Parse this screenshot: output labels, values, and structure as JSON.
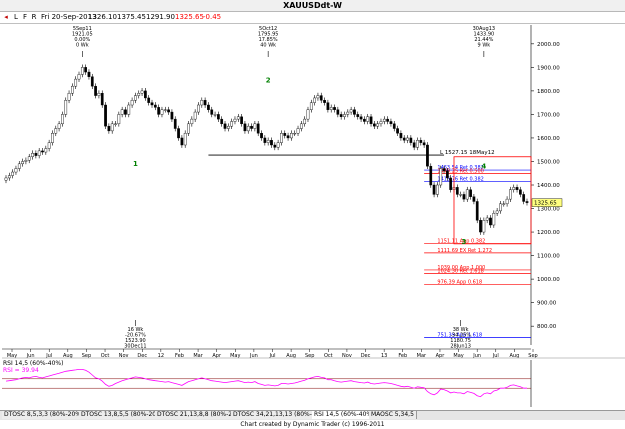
{
  "window": {
    "title": "XAUUSDdt-W"
  },
  "toolbar": {
    "buttons": [
      "L",
      "F",
      "R"
    ],
    "date": "Fri 20-Sep-2013",
    "open": "1326.10",
    "high": "1375.45",
    "low": "1291.90",
    "close": "1325.65",
    "change": "-0.45"
  },
  "colors": {
    "bull": "#ffffff",
    "bear": "#000000",
    "fib_red": "#ff0000",
    "fib_blue": "#0000ff",
    "rsi_line": "#ff00ff",
    "box": "#ff0000",
    "wave_green": "#008000",
    "rsi_level": "#800000"
  },
  "chart_data": {
    "type": "candlestick",
    "ylim": [
      720,
      2080
    ],
    "y_ticks": [
      "2000.00",
      "1900.00",
      "1800.00",
      "1700.00",
      "1600.00",
      "1500.00",
      "1400.00",
      "1300.00",
      "1200.00",
      "1100.00",
      "1000.00",
      "900.00",
      "800.00"
    ],
    "y_tick_values": [
      2000,
      1900,
      1800,
      1700,
      1600,
      1500,
      1400,
      1300,
      1200,
      1100,
      1000,
      900,
      800
    ],
    "x_ticks": [
      "May",
      "Jun",
      "Jul",
      "Aug",
      "Sep",
      "Oct",
      "Nov",
      "Dec",
      "12",
      "Feb",
      "Mar",
      "Apr",
      "May",
      "Jun",
      "Jul",
      "Aug",
      "Sep",
      "Oct",
      "Nov",
      "Dec",
      "13",
      "Feb",
      "Mar",
      "Apr",
      "May",
      "Jun",
      "Jul",
      "Aug",
      "Sep"
    ],
    "last_price_label": "1325.65",
    "closes": [
      1430,
      1440,
      1455,
      1470,
      1490,
      1500,
      1505,
      1520,
      1535,
      1525,
      1545,
      1540,
      1555,
      1580,
      1620,
      1640,
      1660,
      1700,
      1760,
      1790,
      1820,
      1850,
      1870,
      1900,
      1880,
      1860,
      1820,
      1780,
      1790,
      1740,
      1650,
      1630,
      1660,
      1660,
      1700,
      1720,
      1700,
      1740,
      1760,
      1780,
      1790,
      1800,
      1770,
      1750,
      1740,
      1730,
      1700,
      1720,
      1720,
      1710,
      1680,
      1640,
      1600,
      1570,
      1620,
      1660,
      1680,
      1710,
      1740,
      1760,
      1740,
      1720,
      1700,
      1700,
      1680,
      1660,
      1640,
      1650,
      1670,
      1680,
      1690,
      1660,
      1630,
      1650,
      1640,
      1660,
      1620,
      1600,
      1580,
      1590,
      1570,
      1560,
      1580,
      1620,
      1610,
      1600,
      1620,
      1620,
      1640,
      1660,
      1680,
      1720,
      1750,
      1770,
      1780,
      1760,
      1750,
      1720,
      1730,
      1720,
      1700,
      1690,
      1700,
      1710,
      1720,
      1700,
      1690,
      1680,
      1670,
      1690,
      1660,
      1650,
      1660,
      1670,
      1680,
      1670,
      1660,
      1640,
      1620,
      1600,
      1590,
      1600,
      1580,
      1560,
      1590,
      1580,
      1570,
      1480,
      1400,
      1360,
      1400,
      1470,
      1460,
      1430,
      1380,
      1390,
      1360,
      1360,
      1340,
      1380,
      1350,
      1330,
      1250,
      1200,
      1250,
      1260,
      1230,
      1280,
      1290,
      1320,
      1320,
      1340,
      1380,
      1390,
      1380,
      1360,
      1330,
      1325
    ],
    "annotations_top": [
      {
        "text": "5Sep11\n1921.05\n0.00%\n0 Wk",
        "x_index": 23
      },
      {
        "text": "5Oct12\n1795.95\n17.85%\n40 Wk",
        "x_index": 79
      },
      {
        "text": "30Aug13\n1433.90\n21.44%\n9 Wk",
        "x_index": 144
      }
    ],
    "annotations_bottom": [
      {
        "text": "16 Wk\n-20.67%\n1523.90\n30Dec11",
        "x_index": 39
      },
      {
        "text": "38 Wk\n-34.25%\n1180.75\n28Jun13",
        "x_index": 137
      }
    ],
    "waves": [
      {
        "label": "1",
        "x_index": 39,
        "price": 1480
      },
      {
        "label": "2",
        "x_index": 79,
        "price": 1835
      },
      {
        "label": "3",
        "x_index": 138,
        "price": 1150
      },
      {
        "label": "4",
        "x_index": 144,
        "price": 1470
      }
    ],
    "support_line": {
      "label": "L 1527.15 18May12",
      "price": 1527.15
    },
    "fib_levels": [
      {
        "label": "1463.54 Ret 0.382",
        "price": 1463.54,
        "color": "blue"
      },
      {
        "label": "1449.25 Ret 0.500",
        "price": 1449.25,
        "color": "red"
      },
      {
        "label": "1415.76 Ret 0.382",
        "price": 1415.76,
        "color": "blue"
      },
      {
        "label": "1151.11 App 0.382",
        "price": 1151.11,
        "color": "red"
      },
      {
        "label": "1111.69 EX Ret 1.272",
        "price": 1111.69,
        "color": "red"
      },
      {
        "label": "1039.00 App 1.000",
        "price": 1039.0,
        "color": "red"
      },
      {
        "label": "1024.30 Ret 1.618",
        "price": 1024.3,
        "color": "red"
      },
      {
        "label": "976.39 App 0.618",
        "price": 976.39,
        "color": "red"
      },
      {
        "label": "751.39 App 1.618",
        "price": 751.39,
        "color": "blue"
      }
    ],
    "rsi": {
      "label": "RSI 14,5 (60%-40%)",
      "value_label": "RSI = 39.94",
      "levels": [
        60,
        40
      ],
      "values": [
        55,
        56,
        57,
        58,
        60,
        62,
        63,
        62,
        64,
        65,
        63,
        62,
        64,
        66,
        68,
        70,
        72,
        74,
        76,
        77,
        78,
        79,
        80,
        80,
        78,
        74,
        68,
        62,
        60,
        55,
        48,
        44,
        46,
        50,
        53,
        56,
        58,
        60,
        62,
        64,
        63,
        62,
        60,
        58,
        57,
        56,
        55,
        54,
        53,
        54,
        52,
        50,
        48,
        46,
        50,
        54,
        56,
        58,
        60,
        62,
        60,
        58,
        56,
        55,
        54,
        53,
        52,
        53,
        54,
        55,
        56,
        54,
        52,
        53,
        52,
        54,
        50,
        48,
        46,
        47,
        46,
        45,
        46,
        50,
        50,
        49,
        50,
        51,
        53,
        55,
        57,
        60,
        62,
        64,
        65,
        63,
        62,
        58,
        58,
        56,
        54,
        53,
        54,
        55,
        56,
        54,
        53,
        52,
        51,
        53,
        50,
        49,
        50,
        51,
        52,
        51,
        50,
        48,
        46,
        44,
        43,
        44,
        42,
        40,
        43,
        42,
        41,
        33,
        28,
        26,
        30,
        38,
        37,
        34,
        30,
        32,
        30,
        30,
        28,
        33,
        31,
        29,
        24,
        22,
        28,
        30,
        28,
        34,
        36,
        40,
        40,
        42,
        46,
        47,
        45,
        43,
        40,
        40
      ]
    }
  },
  "tabs": [
    "DTOSC 8,5,3,3 (80%-20%)",
    "DTOSC 13,8,5,5 (80%-20%)",
    "DTOSC 21,13,8,8 (80%-20%)",
    "DTOSC 34,21,13,13 (80%-20%)",
    "RSI 14,5 (60%-40%)",
    "MAOSC 5,34,5"
  ],
  "active_tab": 4,
  "credit": "Chart created by Dynamic Trader  (c) 1996-2011"
}
